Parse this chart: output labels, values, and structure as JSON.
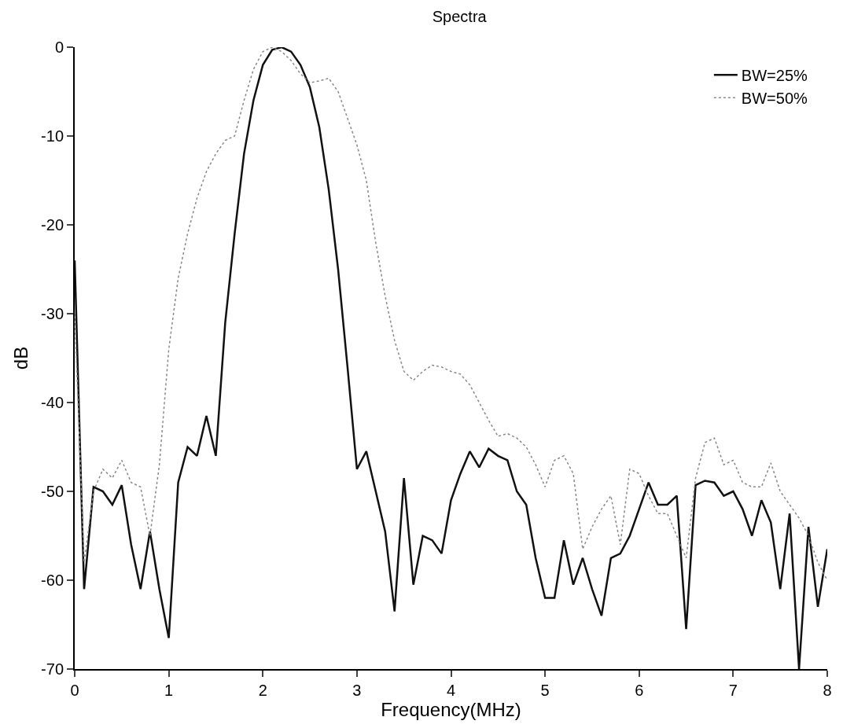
{
  "chart_data": {
    "type": "line",
    "title": "Spectra",
    "xlabel": "Frequency(MHz)",
    "ylabel": "dB",
    "x": [
      0,
      0.1,
      0.2,
      0.3,
      0.4,
      0.5,
      0.6,
      0.7,
      0.8,
      0.9,
      1.0,
      1.1,
      1.2,
      1.3,
      1.4,
      1.5,
      1.6,
      1.7,
      1.8,
      1.9,
      2.0,
      2.1,
      2.2,
      2.3,
      2.4,
      2.5,
      2.6,
      2.7,
      2.8,
      2.9,
      3.0,
      3.1,
      3.2,
      3.3,
      3.4,
      3.5,
      3.6,
      3.7,
      3.8,
      3.9,
      4.0,
      4.1,
      4.2,
      4.3,
      4.4,
      4.5,
      4.6,
      4.7,
      4.8,
      4.9,
      5.0,
      5.1,
      5.2,
      5.3,
      5.4,
      5.5,
      5.6,
      5.7,
      5.8,
      5.9,
      6.0,
      6.1,
      6.2,
      6.3,
      6.4,
      6.5,
      6.6,
      6.7,
      6.8,
      6.9,
      7.0,
      7.1,
      7.2,
      7.3,
      7.4,
      7.5,
      7.6,
      7.7,
      7.8,
      7.9,
      8.0
    ],
    "series": [
      {
        "name": "BW=25%",
        "color": "#111111",
        "line_style": "solid",
        "values": [
          -24,
          -61,
          -49.5,
          -50,
          -51.5,
          -49.3,
          -56,
          -61,
          -54.5,
          -61,
          -66.5,
          -49,
          -45,
          -46,
          -41.5,
          -46,
          -31,
          -21,
          -12,
          -6,
          -2,
          -0.3,
          0,
          -0.5,
          -2,
          -4.5,
          -9,
          -16,
          -25,
          -36,
          -47.5,
          -45.5,
          -50,
          -54.5,
          -63.5,
          -48.5,
          -60.5,
          -55,
          -55.5,
          -57,
          -51,
          -48,
          -45.5,
          -47.3,
          -45.2,
          -46,
          -46.5,
          -50,
          -51.5,
          -57.5,
          -62,
          -62,
          -55.5,
          -60.5,
          -57.5,
          -61,
          -64,
          -57.5,
          -57,
          -55,
          -52,
          -49,
          -51.5,
          -51.5,
          -50.5,
          -65.5,
          -49.3,
          -48.8,
          -49,
          -50.5,
          -50,
          -52,
          -55,
          -51,
          -53.5,
          -61,
          -52.5,
          -70,
          -54,
          -63,
          -56.5
        ]
      },
      {
        "name": "BW=50%",
        "color": "#888888",
        "line_style": "dotted",
        "values": [
          -30,
          -58,
          -50,
          -47.5,
          -48.5,
          -46.5,
          -49,
          -49.5,
          -55,
          -47,
          -34,
          -26,
          -21,
          -17,
          -14,
          -12,
          -10.5,
          -10,
          -6,
          -2.5,
          -0.5,
          0,
          -0.5,
          -1.5,
          -3,
          -4,
          -3.8,
          -3.5,
          -5,
          -8,
          -11,
          -15,
          -22,
          -28,
          -33,
          -36.5,
          -37.5,
          -36.5,
          -35.8,
          -36,
          -36.5,
          -36.8,
          -38,
          -40,
          -42,
          -43.8,
          -43.5,
          -44,
          -45,
          -47,
          -49.5,
          -46.5,
          -46,
          -48,
          -56.5,
          -54,
          -52,
          -50.5,
          -56,
          -47.5,
          -48,
          -50.5,
          -52.5,
          -52.5,
          -55,
          -57.5,
          -48.5,
          -44.5,
          -44,
          -47,
          -46.5,
          -49,
          -49.5,
          -49.5,
          -46.8,
          -50,
          -51.5,
          -53,
          -55,
          -58,
          -60
        ]
      }
    ],
    "xlim": [
      0,
      8
    ],
    "xticks": [
      0,
      1,
      2,
      3,
      4,
      5,
      6,
      7,
      8
    ],
    "ylim": [
      -70,
      0
    ],
    "yticks": [
      -70,
      -60,
      -50,
      -40,
      -30,
      -20,
      -10,
      0
    ],
    "legend": "top right",
    "marker": "none"
  }
}
